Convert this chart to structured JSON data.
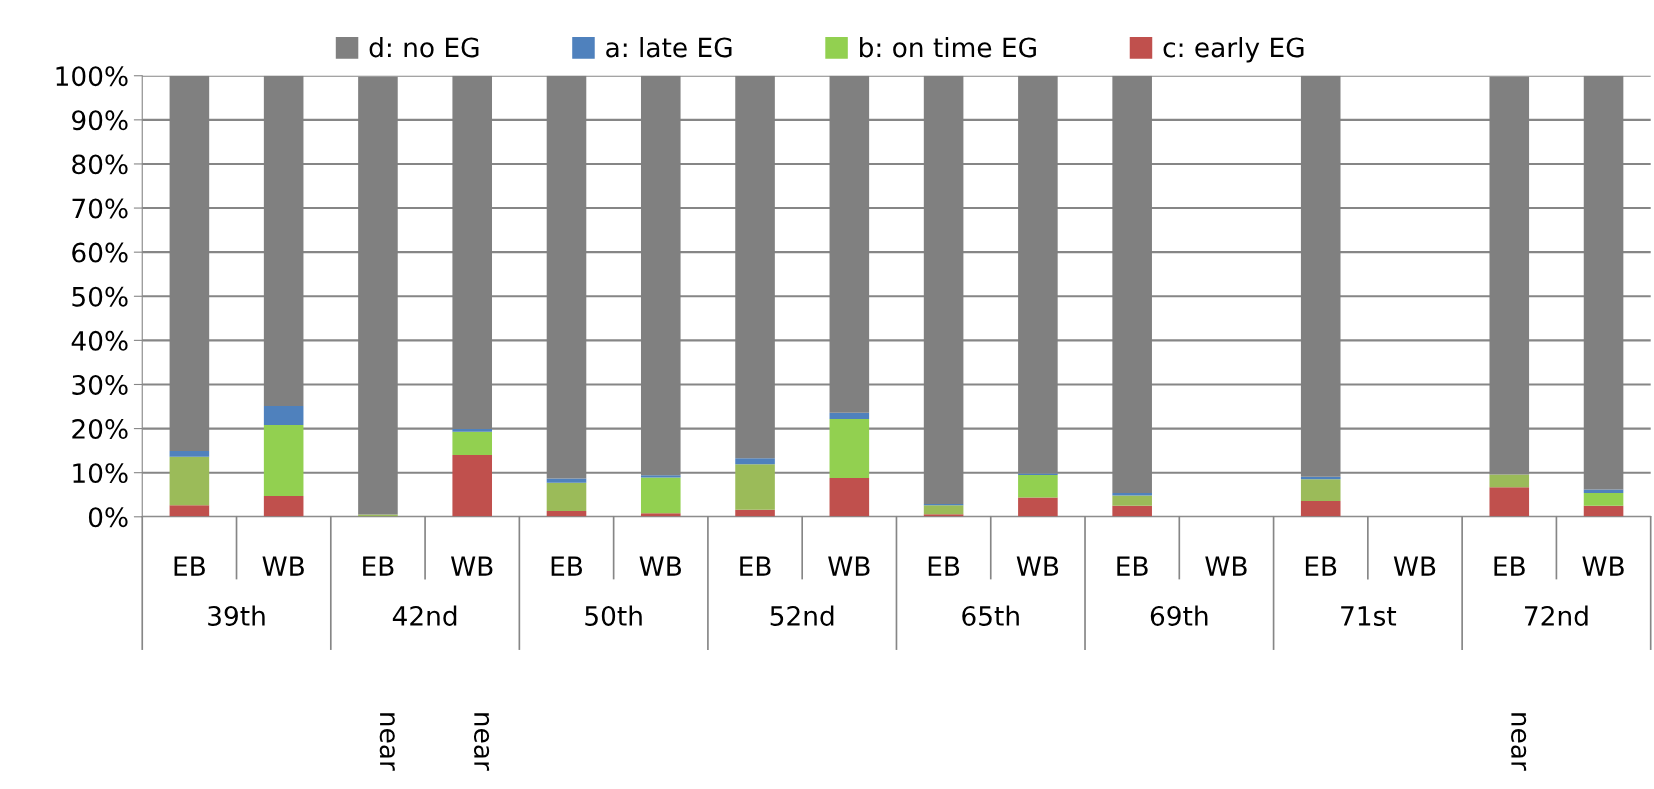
{
  "chart_data": {
    "type": "bar",
    "stacked": true,
    "categories": [
      "EB",
      "WB",
      "EB",
      "WB",
      "EB",
      "WB",
      "EB",
      "WB",
      "EB",
      "WB",
      "EB",
      "WB",
      "EB",
      "WB",
      "EB",
      "WB"
    ],
    "series": [
      {
        "name": "c: early EG",
        "color": "#c0504d",
        "values": [
          2.6,
          4.7,
          null,
          14.0,
          1.3,
          0.8,
          1.6,
          8.8,
          0.6,
          4.4,
          2.5,
          0,
          3.6,
          0,
          6.7,
          2.5
        ]
      },
      {
        "name": "b: on time EG",
        "color": "#92d050",
        "colors": [
          "#9bbb59",
          "#92d050",
          "#9bbb59",
          "#92d050",
          "#9bbb59",
          "#92d050",
          "#9bbb59",
          "#92d050",
          "#9bbb59",
          "#92d050",
          "#9bbb59",
          "#92d050",
          "#9bbb59",
          "#92d050",
          "#9bbb59",
          "#92d050"
        ],
        "values": [
          11.0,
          16.1,
          0.5,
          5.3,
          6.4,
          8.1,
          10.3,
          13.4,
          2.0,
          5.1,
          2.3,
          0,
          4.9,
          0,
          2.9,
          2.9
        ]
      },
      {
        "name": "a: late EG",
        "color": "#4f81bd",
        "values": [
          1.3,
          4.3,
          0,
          0.6,
          1.0,
          0.5,
          1.4,
          1.4,
          0.3,
          0.3,
          0.6,
          0,
          0.6,
          0,
          null,
          0.8
        ]
      },
      {
        "name": "d: no EG",
        "color": "#808080",
        "values": [
          85.1,
          74.9,
          99.3,
          80.1,
          91.3,
          90.6,
          86.7,
          76.4,
          97.1,
          90.2,
          94.6,
          0,
          90.9,
          0,
          90.2,
          93.8
        ]
      }
    ],
    "ylim": [
      0,
      100
    ],
    "yticks": [
      {
        "value": 0,
        "label": "0%"
      },
      {
        "value": 10,
        "label": "10%"
      },
      {
        "value": 20,
        "label": "20%"
      },
      {
        "value": 30,
        "label": "30%"
      },
      {
        "value": 40,
        "label": "40%"
      },
      {
        "value": 50,
        "label": "50%"
      },
      {
        "value": 60,
        "label": "60%"
      },
      {
        "value": 70,
        "label": "70%"
      },
      {
        "value": 80,
        "label": "80%"
      },
      {
        "value": 90,
        "label": "90%"
      },
      {
        "value": 100,
        "label": "100%"
      }
    ],
    "grid": "y",
    "legend": "top",
    "annotations": [
      "39th",
      "42nd",
      "50th",
      "52nd",
      "65th",
      "69th",
      "71st",
      "72nd",
      "near",
      "near",
      "near"
    ]
  }
}
